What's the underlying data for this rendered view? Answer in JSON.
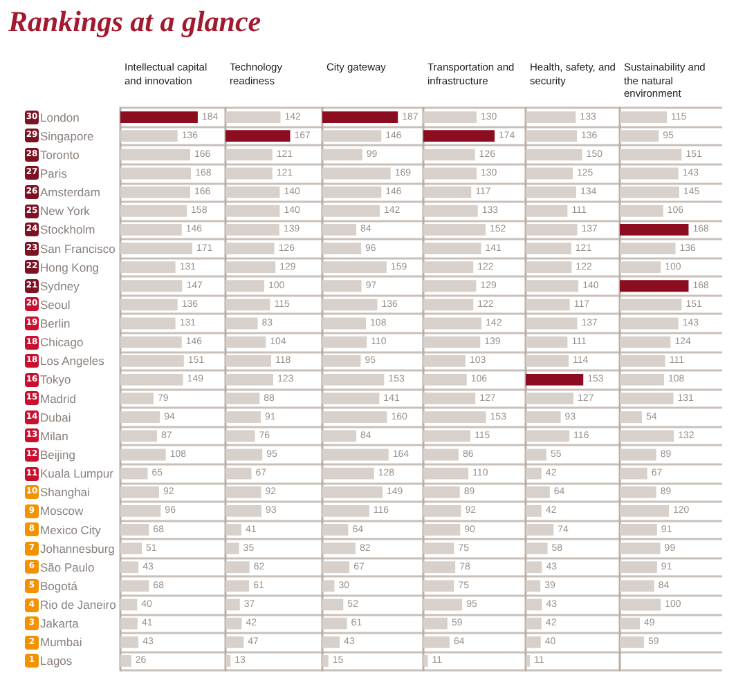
{
  "chart_data": [
    {
      "type": "bar",
      "orientation": "horizontal",
      "title": "Rankings at a glance",
      "xlabel": "Intellectual capital and innovation",
      "categories": [
        "London",
        "Singapore",
        "Toronto",
        "Paris",
        "Amsterdam",
        "New York",
        "Stockholm",
        "San Francisco",
        "Hong Kong",
        "Sydney",
        "Seoul",
        "Berlin",
        "Chicago",
        "Los Angeles",
        "Tokyo",
        "Madrid",
        "Dubai",
        "Milan",
        "Beijing",
        "Kuala Lumpur",
        "Shanghai",
        "Moscow",
        "Mexico City",
        "Johannesburg",
        "São Paulo",
        "Bogotá",
        "Rio de Janeiro",
        "Jakarta",
        "Mumbai",
        "Lagos"
      ],
      "values": [
        184,
        136,
        166,
        168,
        166,
        158,
        146,
        171,
        131,
        147,
        136,
        131,
        146,
        151,
        149,
        79,
        94,
        87,
        108,
        65,
        92,
        96,
        68,
        51,
        43,
        68,
        40,
        41,
        43,
        26
      ],
      "colors": [
        "#8b0d1f",
        "#d8d0ca",
        "#d8d0ca",
        "#d8d0ca",
        "#d8d0ca",
        "#d8d0ca",
        "#d8d0ca",
        "#d8d0ca",
        "#d8d0ca",
        "#d8d0ca",
        "#d8d0ca",
        "#d8d0ca",
        "#d8d0ca",
        "#d8d0ca",
        "#d8d0ca",
        "#d8d0ca",
        "#d8d0ca",
        "#d8d0ca",
        "#d8d0ca",
        "#d8d0ca",
        "#d8d0ca",
        "#d8d0ca",
        "#d8d0ca",
        "#d8d0ca",
        "#d8d0ca",
        "#d8d0ca",
        "#d8d0ca",
        "#d8d0ca",
        "#d8d0ca",
        "#d8d0ca"
      ],
      "annotations": [
        "30",
        "29",
        "28",
        "27",
        "26",
        "25",
        "24",
        "23",
        "22",
        "21",
        "20",
        "19",
        "18",
        "18",
        "16",
        "15",
        "14",
        "13",
        "12",
        "11",
        "10",
        "9",
        "8",
        "7",
        "6",
        "5",
        "4",
        "3",
        "2",
        "1"
      ],
      "xlim": [
        0,
        250
      ],
      "data_labels": true,
      "grid": "y",
      "tick_labels": "y"
    },
    {
      "type": "bar",
      "orientation": "horizontal",
      "xlabel": "Technology readiness",
      "categories": [
        null,
        null,
        null,
        null,
        null,
        null,
        null,
        null,
        null,
        null,
        null,
        null,
        null,
        null,
        null,
        null,
        null,
        null,
        null,
        null,
        null,
        null,
        null,
        null,
        null,
        null,
        null,
        null,
        null,
        null
      ],
      "values": [
        142,
        167,
        121,
        121,
        140,
        140,
        139,
        126,
        129,
        100,
        115,
        83,
        104,
        118,
        123,
        88,
        91,
        76,
        95,
        67,
        92,
        93,
        41,
        35,
        62,
        61,
        37,
        42,
        47,
        13
      ],
      "colors": [
        "#d8d0ca",
        "#8b0d1f",
        "#d8d0ca",
        "#d8d0ca",
        "#d8d0ca",
        "#d8d0ca",
        "#d8d0ca",
        "#d8d0ca",
        "#d8d0ca",
        "#d8d0ca",
        "#d8d0ca",
        "#d8d0ca",
        "#d8d0ca",
        "#d8d0ca",
        "#d8d0ca",
        "#d8d0ca",
        "#d8d0ca",
        "#d8d0ca",
        "#d8d0ca",
        "#d8d0ca",
        "#d8d0ca",
        "#d8d0ca",
        "#d8d0ca",
        "#d8d0ca",
        "#d8d0ca",
        "#d8d0ca",
        "#d8d0ca",
        "#d8d0ca",
        "#d8d0ca",
        "#d8d0ca"
      ],
      "xlim": [
        0,
        250
      ],
      "data_labels": true,
      "grid": "y",
      "tick_labels": false
    },
    {
      "type": "bar",
      "orientation": "horizontal",
      "xlabel": "City gateway",
      "categories": [
        null,
        null,
        null,
        null,
        null,
        null,
        null,
        null,
        null,
        null,
        null,
        null,
        null,
        null,
        null,
        null,
        null,
        null,
        null,
        null,
        null,
        null,
        null,
        null,
        null,
        null,
        null,
        null,
        null,
        null
      ],
      "values": [
        187,
        146,
        99,
        169,
        146,
        142,
        84,
        96,
        159,
        97,
        136,
        108,
        110,
        95,
        153,
        141,
        160,
        84,
        164,
        128,
        149,
        116,
        64,
        82,
        67,
        30,
        52,
        61,
        43,
        15
      ],
      "colors": [
        "#8b0d1f",
        "#d8d0ca",
        "#d8d0ca",
        "#d8d0ca",
        "#d8d0ca",
        "#d8d0ca",
        "#d8d0ca",
        "#d8d0ca",
        "#d8d0ca",
        "#d8d0ca",
        "#d8d0ca",
        "#d8d0ca",
        "#d8d0ca",
        "#d8d0ca",
        "#d8d0ca",
        "#d8d0ca",
        "#d8d0ca",
        "#d8d0ca",
        "#d8d0ca",
        "#d8d0ca",
        "#d8d0ca",
        "#d8d0ca",
        "#d8d0ca",
        "#d8d0ca",
        "#d8d0ca",
        "#d8d0ca",
        "#d8d0ca",
        "#d8d0ca",
        "#d8d0ca",
        "#d8d0ca"
      ],
      "xlim": [
        0,
        250
      ],
      "data_labels": true,
      "grid": "y",
      "tick_labels": false
    },
    {
      "type": "bar",
      "orientation": "horizontal",
      "xlabel": "Transportation and infrastructure",
      "categories": [
        null,
        null,
        null,
        null,
        null,
        null,
        null,
        null,
        null,
        null,
        null,
        null,
        null,
        null,
        null,
        null,
        null,
        null,
        null,
        null,
        null,
        null,
        null,
        null,
        null,
        null,
        null,
        null,
        null,
        null
      ],
      "values": [
        130,
        174,
        126,
        130,
        117,
        133,
        152,
        141,
        122,
        129,
        122,
        142,
        139,
        103,
        106,
        127,
        153,
        115,
        86,
        110,
        89,
        92,
        90,
        75,
        78,
        75,
        95,
        59,
        64,
        11
      ],
      "colors": [
        "#d8d0ca",
        "#8b0d1f",
        "#d8d0ca",
        "#d8d0ca",
        "#d8d0ca",
        "#d8d0ca",
        "#d8d0ca",
        "#d8d0ca",
        "#d8d0ca",
        "#d8d0ca",
        "#d8d0ca",
        "#d8d0ca",
        "#d8d0ca",
        "#d8d0ca",
        "#d8d0ca",
        "#d8d0ca",
        "#d8d0ca",
        "#d8d0ca",
        "#d8d0ca",
        "#d8d0ca",
        "#d8d0ca",
        "#d8d0ca",
        "#d8d0ca",
        "#d8d0ca",
        "#d8d0ca",
        "#d8d0ca",
        "#d8d0ca",
        "#d8d0ca",
        "#d8d0ca",
        "#d8d0ca"
      ],
      "xlim": [
        0,
        250
      ],
      "data_labels": true,
      "grid": "y",
      "tick_labels": false
    },
    {
      "type": "bar",
      "orientation": "horizontal",
      "xlabel": "Health, safety, and security",
      "categories": [
        null,
        null,
        null,
        null,
        null,
        null,
        null,
        null,
        null,
        null,
        null,
        null,
        null,
        null,
        null,
        null,
        null,
        null,
        null,
        null,
        null,
        null,
        null,
        null,
        null,
        null,
        null,
        null,
        null,
        null
      ],
      "values": [
        133,
        136,
        150,
        125,
        134,
        111,
        137,
        121,
        122,
        140,
        117,
        137,
        111,
        114,
        153,
        127,
        93,
        116,
        55,
        42,
        64,
        42,
        74,
        58,
        43,
        39,
        43,
        42,
        40,
        11
      ],
      "colors": [
        "#d8d0ca",
        "#d8d0ca",
        "#d8d0ca",
        "#d8d0ca",
        "#d8d0ca",
        "#d8d0ca",
        "#d8d0ca",
        "#d8d0ca",
        "#d8d0ca",
        "#d8d0ca",
        "#d8d0ca",
        "#d8d0ca",
        "#d8d0ca",
        "#d8d0ca",
        "#8b0d1f",
        "#d8d0ca",
        "#d8d0ca",
        "#d8d0ca",
        "#d8d0ca",
        "#d8d0ca",
        "#d8d0ca",
        "#d8d0ca",
        "#d8d0ca",
        "#d8d0ca",
        "#d8d0ca",
        "#d8d0ca",
        "#d8d0ca",
        "#d8d0ca",
        "#d8d0ca",
        "#d8d0ca"
      ],
      "xlim": [
        0,
        250
      ],
      "data_labels": true,
      "grid": "y",
      "tick_labels": false
    },
    {
      "type": "bar",
      "orientation": "horizontal",
      "xlabel": "Sustainability and the natural environment",
      "categories": [
        null,
        null,
        null,
        null,
        null,
        null,
        null,
        null,
        null,
        null,
        null,
        null,
        null,
        null,
        null,
        null,
        null,
        null,
        null,
        null,
        null,
        null,
        null,
        null,
        null,
        null,
        null,
        null,
        null,
        null
      ],
      "values": [
        115,
        95,
        151,
        143,
        145,
        106,
        168,
        136,
        100,
        168,
        151,
        143,
        124,
        111,
        108,
        131,
        54,
        132,
        89,
        67,
        89,
        120,
        91,
        99,
        91,
        84,
        100,
        49,
        59,
        null
      ],
      "colors": [
        "#d8d0ca",
        "#d8d0ca",
        "#d8d0ca",
        "#d8d0ca",
        "#d8d0ca",
        "#d8d0ca",
        "#8b0d1f",
        "#d8d0ca",
        "#d8d0ca",
        "#8b0d1f",
        "#d8d0ca",
        "#d8d0ca",
        "#d8d0ca",
        "#d8d0ca",
        "#d8d0ca",
        "#d8d0ca",
        "#d8d0ca",
        "#d8d0ca",
        "#d8d0ca",
        "#d8d0ca",
        "#d8d0ca",
        "#d8d0ca",
        "#d8d0ca",
        "#d8d0ca",
        "#d8d0ca",
        "#d8d0ca",
        "#d8d0ca",
        "#d8d0ca",
        "#d8d0ca",
        "#d8d0ca"
      ],
      "xlim": [
        0,
        250
      ],
      "data_labels": true,
      "grid": "y",
      "tick_labels": false
    }
  ]
}
